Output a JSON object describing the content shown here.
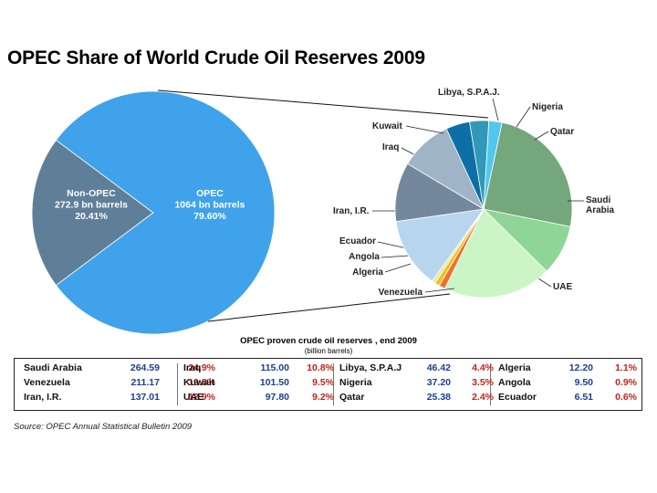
{
  "title": "OPEC Share of World Crude Oil Reserves 2009",
  "chart_data": [
    {
      "type": "pie",
      "title": "OPEC Share of World Crude Oil Reserves 2009",
      "slices": [
        {
          "name": "Non-OPEC",
          "value_label": "272.9 bn barrels",
          "share": 20.41,
          "share_label": "20.41%",
          "color": "#5f7f98"
        },
        {
          "name": "OPEC",
          "value_label": "1064 bn barrels",
          "share": 79.6,
          "share_label": "79.60%",
          "color": "#3fa2ea"
        }
      ]
    },
    {
      "type": "pie",
      "title": "OPEC proven crude oil reserves , end 2009",
      "unit": "(billion barrels)",
      "slices": [
        {
          "name": "Saudi Arabia",
          "label": "Saudi Arabia",
          "value": 264.59,
          "share": 24.9,
          "color": "#74a77b"
        },
        {
          "name": "UAE",
          "label": "UAE",
          "value": 97.8,
          "share": 9.2,
          "color": "#8fd596"
        },
        {
          "name": "Venezuela",
          "label": "Venezuela",
          "value": 211.17,
          "share": 19.8,
          "color": "#ccf5c6"
        },
        {
          "name": "Algeria",
          "label": "Algeria",
          "value": 12.2,
          "share": 1.1,
          "color": "#ef7030"
        },
        {
          "name": "Angola",
          "label": "Angola",
          "value": 9.5,
          "share": 0.9,
          "color": "#f2c21f"
        },
        {
          "name": "Ecuador",
          "label": "Ecuador",
          "value": 6.51,
          "share": 0.6,
          "color": "#e2e9a0"
        },
        {
          "name": "Iran, I.R.",
          "label": "Iran, I.R.",
          "value": 137.01,
          "share": 12.9,
          "color": "#b7d6ee"
        },
        {
          "name": "Iraq",
          "label": "Iraq",
          "value": 115.0,
          "share": 10.8,
          "color": "#74889d"
        },
        {
          "name": "Kuwait",
          "label": "Kuwait",
          "value": 101.5,
          "share": 9.5,
          "color": "#9fb4c6"
        },
        {
          "name": "Libya, S.P.A.J.",
          "label": "Libya, S.P.A.J.",
          "value": 46.42,
          "share": 4.4,
          "color": "#0d6fa6"
        },
        {
          "name": "Nigeria",
          "label": "Nigeria",
          "value": 37.2,
          "share": 3.5,
          "color": "#3198b8"
        },
        {
          "name": "Qatar",
          "label": "Qatar",
          "value": 25.38,
          "share": 2.4,
          "color": "#50c8ee"
        }
      ]
    }
  ],
  "table": {
    "title": "OPEC proven crude oil reserves , end 2009",
    "subtitle": "(billion barrels)",
    "groups": [
      [
        {
          "name": "Saudi Arabia",
          "value": "264.59",
          "pct": "24.9%"
        },
        {
          "name": "Venezuela",
          "value": "211.17",
          "pct": "19.8%"
        },
        {
          "name": "Iran, I.R.",
          "value": "137.01",
          "pct": "12.9%"
        }
      ],
      [
        {
          "name": "Iraq",
          "value": "115.00",
          "pct": "10.8%"
        },
        {
          "name": "Kuwait",
          "value": "101.50",
          "pct": "9.5%"
        },
        {
          "name": "UAE",
          "value": "97.80",
          "pct": "9.2%"
        }
      ],
      [
        {
          "name": "Libya, S.P.A.J",
          "value": "46.42",
          "pct": "4.4%"
        },
        {
          "name": "Nigeria",
          "value": "37.20",
          "pct": "3.5%"
        },
        {
          "name": "Qatar",
          "value": "25.38",
          "pct": "2.4%"
        }
      ],
      [
        {
          "name": "Algeria",
          "value": "12.20",
          "pct": "1.1%"
        },
        {
          "name": "Angola",
          "value": "9.50",
          "pct": "0.9%"
        },
        {
          "name": "Ecuador",
          "value": "6.51",
          "pct": "0.6%"
        }
      ]
    ]
  },
  "source": "Source: OPEC Annual Statistical Bulletin 2009"
}
